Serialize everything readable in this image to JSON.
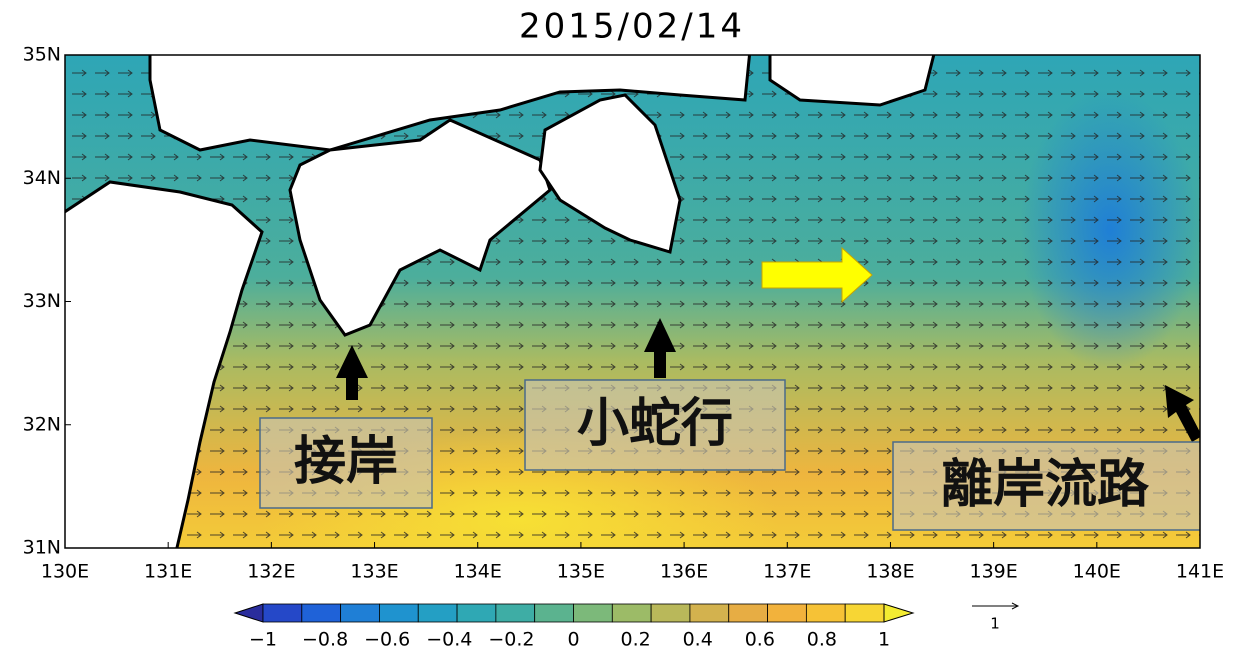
{
  "title": "2015/02/14",
  "lat_labels": [
    "35N",
    "34N",
    "33N",
    "32N",
    "31N"
  ],
  "lon_labels": [
    "130E",
    "131E",
    "132E",
    "133E",
    "134E",
    "135E",
    "136E",
    "137E",
    "138E",
    "139E",
    "140E",
    "141E"
  ],
  "colorbar": {
    "labels": [
      "−1",
      "−0.8",
      "−0.6",
      "−0.4",
      "−0.2",
      "0",
      "0.2",
      "0.4",
      "0.6",
      "0.8",
      "1"
    ],
    "colors": [
      "#2a2d9c",
      "#2548c8",
      "#1f62d8",
      "#1f7fd6",
      "#1f93cf",
      "#249fc4",
      "#2fa8b4",
      "#3eada5",
      "#5bb38f",
      "#7cb97a",
      "#9cbb67",
      "#b9b85a",
      "#d3b24e",
      "#e7ad44",
      "#f2b23c",
      "#f6c236",
      "#f7d634",
      "#f3ec32"
    ]
  },
  "reference_vector": {
    "label": "1"
  },
  "annotations": [
    "接岸",
    "小蛇行",
    "離岸流路"
  ]
}
